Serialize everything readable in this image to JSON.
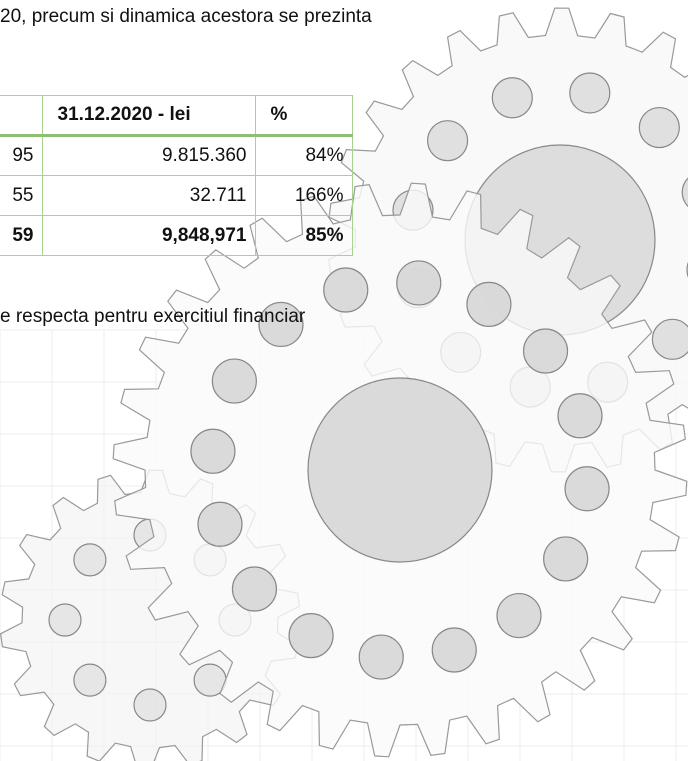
{
  "paragraph_top": "20, precum si dinamica acestora se prezinta",
  "table": {
    "header": [
      "31.12.2020 - lei",
      "%"
    ],
    "rows": [
      [
        "95",
        "9.815.360",
        "84%"
      ],
      [
        "55",
        "32.711",
        "166%"
      ],
      [
        "59",
        "9,848,971",
        "85%"
      ]
    ]
  },
  "paragraph_bottom": "e respecta pentru exercitiul financiar"
}
